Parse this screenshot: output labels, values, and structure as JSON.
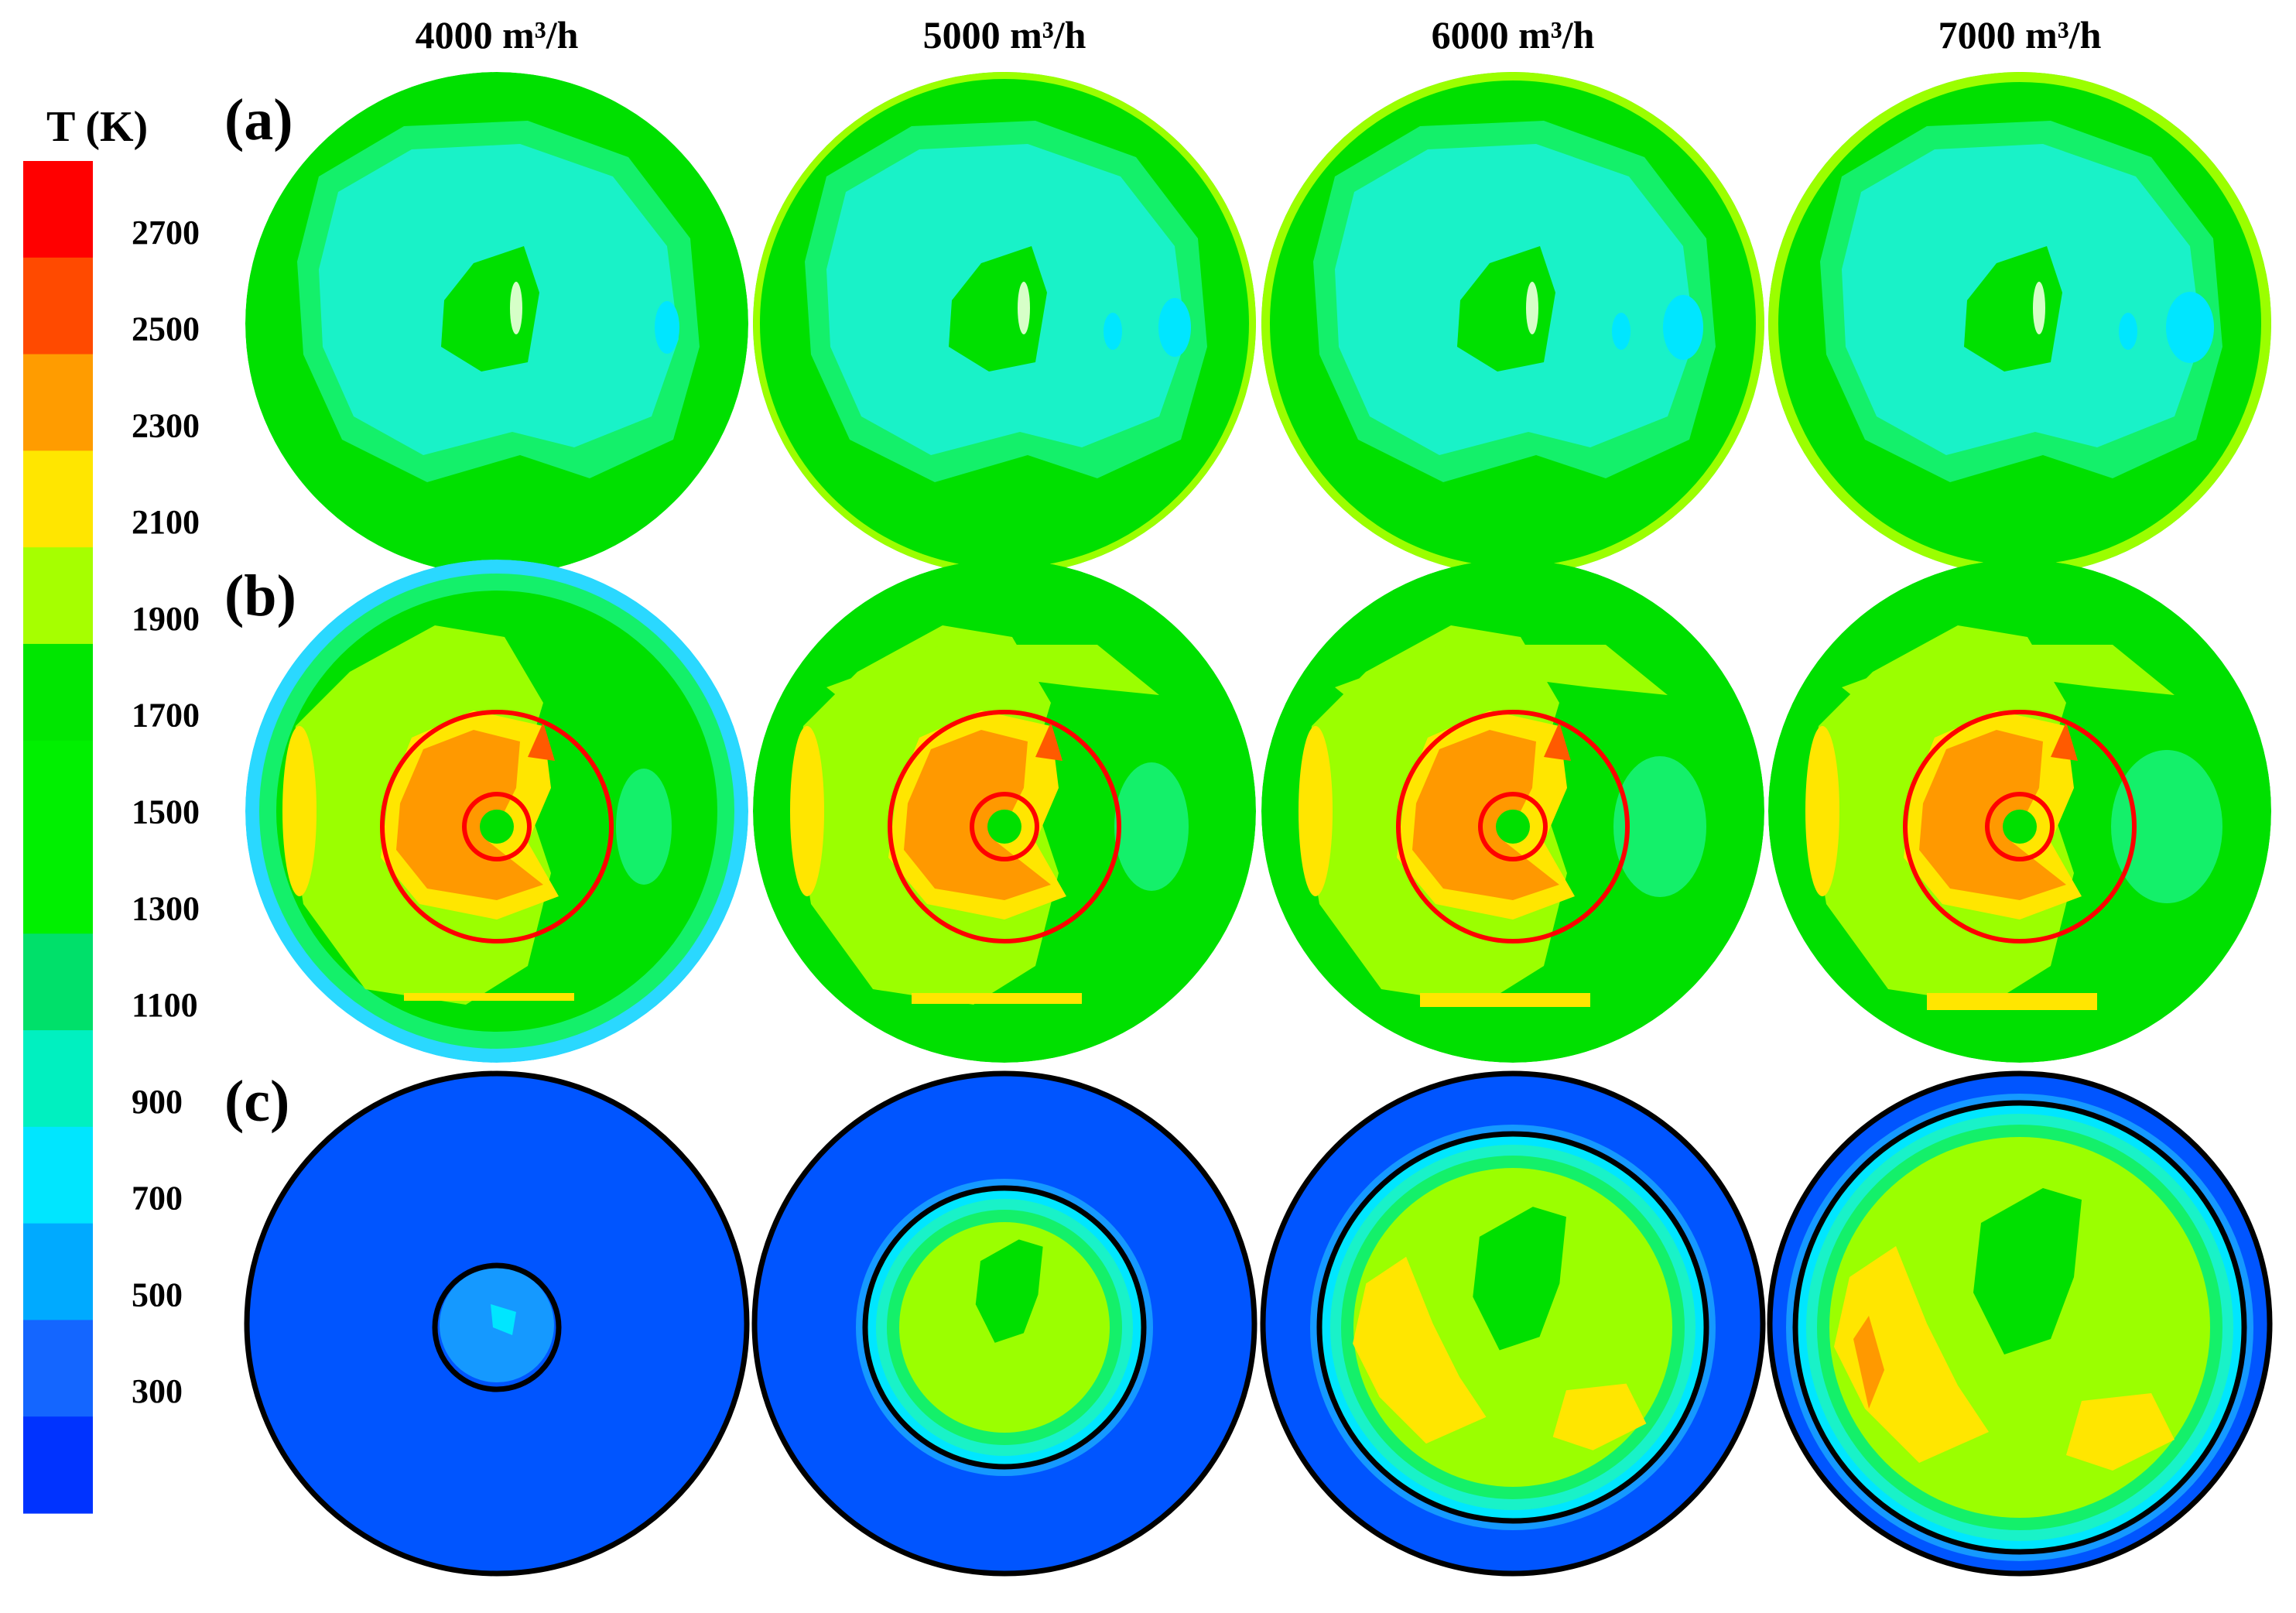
{
  "legend": {
    "title": "T (K)",
    "ticks": [
      "2700",
      "2500",
      "2300",
      "2100",
      "1900",
      "1700",
      "1500",
      "1300",
      "1100",
      "900",
      "700",
      "500",
      "300"
    ],
    "bands": [
      "#ff0000",
      "#ff4a00",
      "#ff9c00",
      "#ffe600",
      "#a6ff00",
      "#00e600",
      "#00f000",
      "#00f000",
      "#00e06a",
      "#00f0c0",
      "#00e6ff",
      "#00aaff",
      "#1466ff",
      "#0033ff"
    ]
  },
  "columns": [
    "4000 m³/h",
    "5000 m³/h",
    "6000 m³/h",
    "7000 m³/h"
  ],
  "rows": [
    "(a)",
    "(b)",
    "(c)"
  ],
  "colors": {
    "rim_green": "#00e000",
    "mid_green": "#14f06a",
    "cyan": "#19f2c8",
    "light_cyan": "#00e6ff",
    "yellow_green": "#9bff00",
    "yellow": "#ffe600",
    "orange": "#ff9900",
    "dark_orange": "#ff5a00",
    "blue": "#0055ff",
    "sky_blue": "#1599ff",
    "red_marker": "#ff0000",
    "black_outline": "#000000"
  }
}
